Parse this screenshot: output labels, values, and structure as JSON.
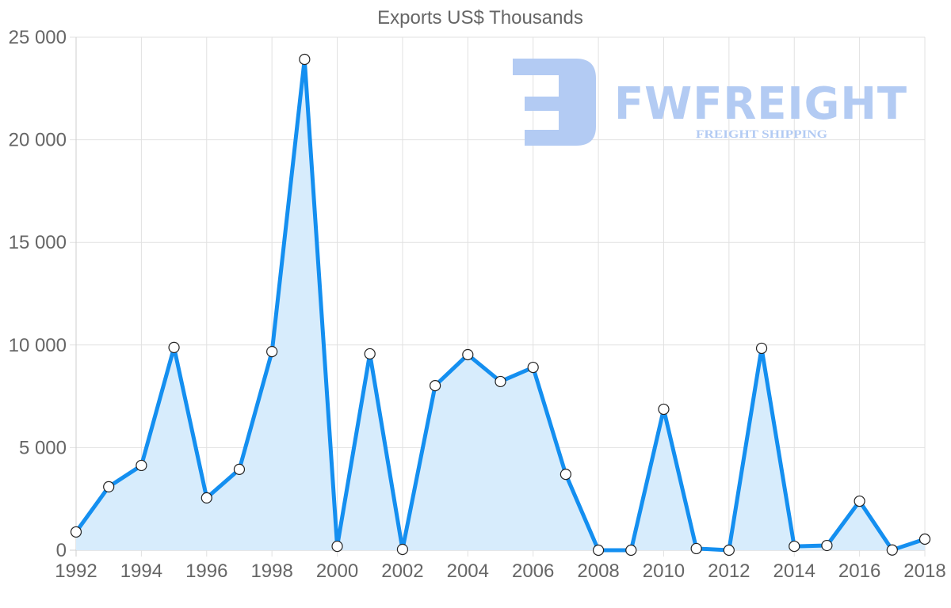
{
  "chart_data": {
    "type": "area",
    "title": "Exports US$ Thousands",
    "xlabel": "",
    "ylabel": "",
    "x": [
      1992,
      1993,
      1994,
      1995,
      1996,
      1997,
      1998,
      1999,
      2000,
      2001,
      2002,
      2003,
      2004,
      2005,
      2006,
      2007,
      2008,
      2009,
      2010,
      2011,
      2012,
      2013,
      2014,
      2015,
      2016,
      2017,
      2018
    ],
    "series": [
      {
        "name": "Exports US$ Thousands",
        "values": [
          890,
          3090,
          4130,
          9880,
          2550,
          3940,
          9680,
          23920,
          190,
          9570,
          40,
          8020,
          9530,
          8220,
          8910,
          3700,
          0,
          0,
          6870,
          80,
          0,
          9840,
          190,
          230,
          2390,
          10,
          540
        ],
        "line_color": "#148ff0",
        "fill_color": "#d7ecfc",
        "marker": "circle-white"
      }
    ],
    "ylim": [
      0,
      25000
    ],
    "yticks": [
      0,
      5000,
      10000,
      15000,
      20000,
      25000
    ],
    "ytick_labels": [
      "0",
      "5 000",
      "10 000",
      "15 000",
      "20 000",
      "25 000"
    ],
    "xtick_labels": [
      "1992",
      "1994",
      "1996",
      "1998",
      "2000",
      "2002",
      "2004",
      "2006",
      "2008",
      "2010",
      "2012",
      "2014",
      "2016",
      "2018"
    ],
    "grid": true,
    "legend": "none"
  },
  "watermark": {
    "brand": "FWFREIGHT",
    "tagline": "FREIGHT SHIPPING",
    "color": "#b3cbf3"
  }
}
